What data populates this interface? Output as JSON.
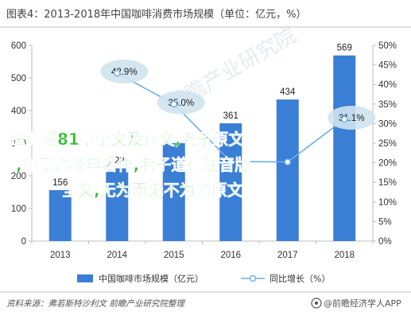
{
  "title": "图表4：2013-2018年中国咖啡消费市场规模（单位：亿元，%）",
  "source": "资料来源：弗若斯特沙利文 前瞻产业研究院整理",
  "brand": "@前瞻经济学人APP",
  "watermark": "前瞻产业研究院",
  "overlay_lines": [
    "道德经81章全文及译文,老子原文",
    ",道家的经典著作,老子道德注音版",
    "全文,无为而无不为的原文"
  ],
  "colors": {
    "bar": "#3a7fd5",
    "line": "#6aafe6",
    "bubble": "#cfe3ee",
    "axis": "#bfbfbf",
    "overlay": "#2fbe2f"
  },
  "icons": {
    "brand_logo": "frontline-logo-icon"
  },
  "chart_data": {
    "type": "bar",
    "categories": [
      "2013",
      "2014",
      "2015",
      "2016",
      "2017",
      "2018"
    ],
    "ylim_left": [
      0,
      600
    ],
    "yticks_left": [
      "0",
      "100",
      "200",
      "300",
      "400",
      "500",
      "600"
    ],
    "ylim_right": [
      0,
      50
    ],
    "yticks_right": [
      "0%",
      "5%",
      "10%",
      "15%",
      "20%",
      "25%",
      "30%",
      "35%",
      "40%",
      "45%",
      "50%"
    ],
    "series": [
      {
        "name": "中国咖啡市场规模（亿元）",
        "type": "bar",
        "axis": "left",
        "values": [
          156,
          223,
          300,
          361,
          434,
          569
        ],
        "labels": [
          "156",
          "223",
          "",
          "361",
          "434",
          "569"
        ]
      },
      {
        "name": "同比增长（%）",
        "type": "line",
        "axis": "right",
        "values": [
          null,
          42.9,
          35.0,
          20.3,
          20.2,
          31.1
        ],
        "labels": [
          "",
          "42.9%",
          "35.0%",
          "",
          "",
          "31.1%"
        ]
      }
    ],
    "legend_position": "bottom",
    "grid": false
  }
}
